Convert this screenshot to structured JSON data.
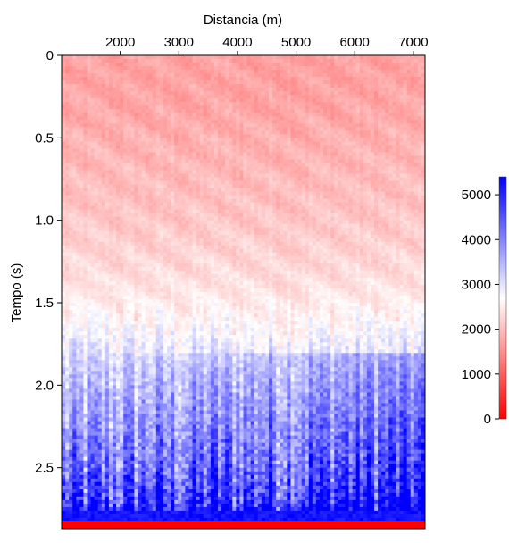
{
  "chart_data": {
    "type": "heatmap",
    "title": "",
    "xlabel": "Distancia (m)",
    "ylabel": "Tempo (s)",
    "x_axis_position": "top",
    "y_axis_inverted": true,
    "xlim": [
      1000,
      7200
    ],
    "ylim": [
      0,
      2.87
    ],
    "x_ticks": [
      2000,
      3000,
      4000,
      5000,
      6000,
      7000
    ],
    "y_ticks": [
      0,
      0.5,
      1.0,
      1.5,
      2.0,
      2.5
    ],
    "y_tick_labels": [
      "0",
      "0.5",
      "1.0",
      "1.5",
      "2.0",
      "2.5"
    ],
    "colorbar": {
      "range": [
        0,
        5400
      ],
      "ticks": [
        0,
        1000,
        2000,
        3000,
        4000,
        5000
      ],
      "colors": {
        "low": "#ff0000",
        "mid": "#ffffff",
        "high": "#0000ff"
      }
    },
    "value_profile": {
      "time_s": [
        0.0,
        0.3,
        0.6,
        1.0,
        1.3,
        1.6,
        1.9,
        2.1,
        2.3,
        2.5,
        2.7,
        2.8
      ],
      "dominant_value": [
        1700,
        1750,
        1900,
        2100,
        2300,
        2600,
        3100,
        3400,
        3700,
        4000,
        4500,
        5200
      ]
    },
    "grid": false,
    "legend": "colorbar right"
  }
}
